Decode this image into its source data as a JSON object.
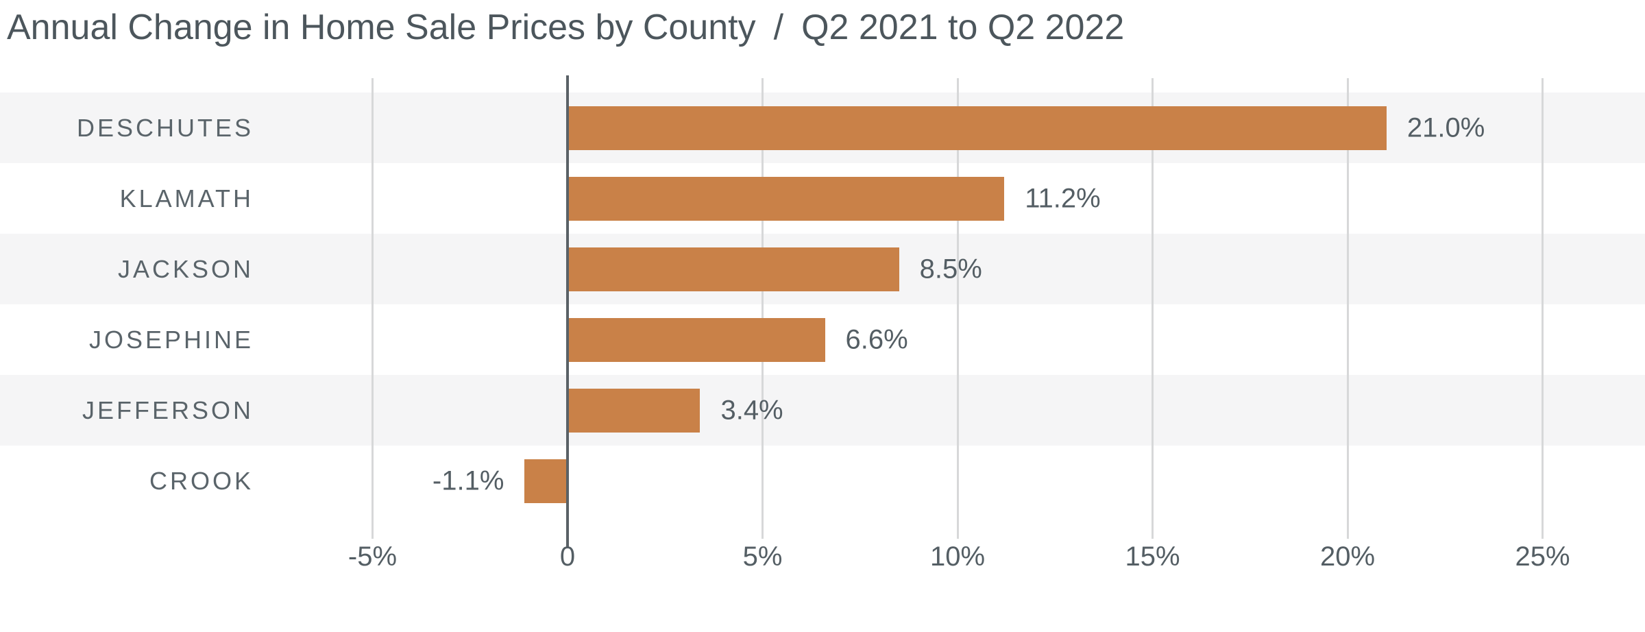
{
  "title": {
    "main": "Annual Change in Home Sale Prices by County",
    "separator": "/",
    "period": "Q2 2021 to Q2 2022"
  },
  "chart_data": {
    "type": "bar",
    "orientation": "horizontal",
    "title": "Annual Change in Home Sale Prices by County / Q2 2021 to Q2 2022",
    "categories": [
      "DESCHUTES",
      "KLAMATH",
      "JACKSON",
      "JOSEPHINE",
      "JEFFERSON",
      "CROOK"
    ],
    "values": [
      21.0,
      11.2,
      8.5,
      6.6,
      3.4,
      -1.1
    ],
    "value_labels": [
      "21.0%",
      "11.2%",
      "8.5%",
      "6.6%",
      "3.4%",
      "-1.1%"
    ],
    "xlabel": "",
    "ylabel": "",
    "x_ticks": [
      -5,
      0,
      5,
      10,
      15,
      20,
      25
    ],
    "x_tick_labels": [
      "-5%",
      "0",
      "5%",
      "10%",
      "15%",
      "20%",
      "25%"
    ],
    "xlim": [
      -5,
      25
    ],
    "grid": true,
    "legend": false,
    "row_striping": "alternate rows shaded starting with first row",
    "colors": {
      "bar": "#c98148",
      "row_stripe": "#f5f5f6",
      "gridline": "#d7d8d9",
      "zero_line": "#5a6166",
      "label_text": "#545e64",
      "county_text": "#5a646a",
      "title_text": "#4c565c",
      "background": "#ffffff"
    }
  }
}
